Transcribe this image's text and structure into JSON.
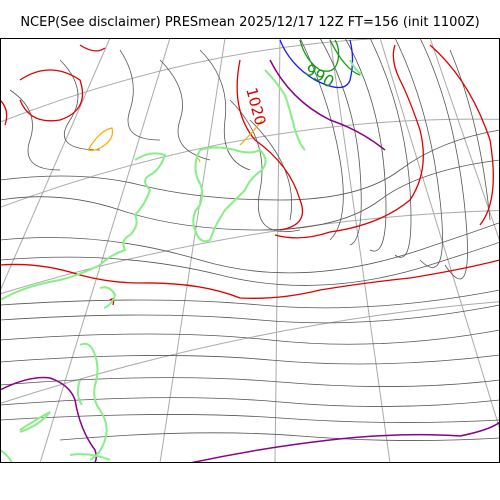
{
  "title": "NCEP(See disclaimer) PRESmean 2025/12/17 12Z FT=156 (init 1100Z)",
  "contour_labels": {
    "low": "990",
    "high": "1020"
  },
  "colors": {
    "isobar": "#555555",
    "contour_1020": "#e00000",
    "contour_1000": "#1a1aff",
    "contour_990": "#119911",
    "contour_1030": "#8b008b",
    "coastline": "#88ee88",
    "graticule": "#aaaaaa",
    "accent_orange": "#ffaa00"
  }
}
